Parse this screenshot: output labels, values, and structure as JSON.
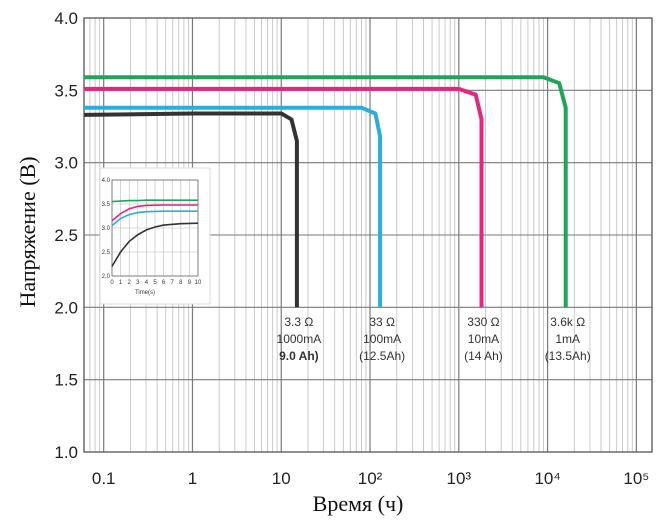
{
  "chart_data": {
    "type": "line",
    "title": "",
    "xlabel": "Время (ч)",
    "ylabel": "Напряжение (В)",
    "x_scale": "log",
    "xlim": [
      0.06,
      150000
    ],
    "ylim": [
      1.0,
      4.0
    ],
    "grid": true,
    "x_ticks": [
      {
        "value": 0.1,
        "label": "0.1"
      },
      {
        "value": 1,
        "label": "1"
      },
      {
        "value": 10,
        "label": "10"
      },
      {
        "value": 100,
        "label": "10²"
      },
      {
        "value": 1000,
        "label": "10³"
      },
      {
        "value": 10000,
        "label": "10⁴"
      },
      {
        "value": 100000,
        "label": "10⁵"
      }
    ],
    "y_ticks": [
      {
        "value": 4.0,
        "label": "4.0"
      },
      {
        "value": 3.5,
        "label": "3.5"
      },
      {
        "value": 3.0,
        "label": "3.0"
      },
      {
        "value": 2.5,
        "label": "2.5"
      },
      {
        "value": 2.0,
        "label": "2.0"
      },
      {
        "value": 1.5,
        "label": "1.5"
      },
      {
        "value": 1.0,
        "label": "1.0"
      }
    ],
    "series": [
      {
        "color": "#333333",
        "plateau": 3.33,
        "end": 15,
        "x": [
          0.06,
          1,
          10,
          13,
          15,
          15
        ],
        "y": [
          3.33,
          3.34,
          3.34,
          3.3,
          3.15,
          2.0
        ],
        "labels": [
          "3.3 Ω",
          "1000mA",
          "9.0 Ah)"
        ]
      },
      {
        "color": "#2aaee0",
        "plateau": 3.38,
        "end": 130,
        "x": [
          0.06,
          1,
          80,
          115,
          130,
          130
        ],
        "y": [
          3.38,
          3.38,
          3.38,
          3.34,
          3.18,
          2.0
        ],
        "labels": [
          "33 Ω",
          "100mA",
          "(12.5Ah)"
        ]
      },
      {
        "color": "#e6267e",
        "plateau": 3.51,
        "end": 1800,
        "x": [
          0.06,
          1,
          1000,
          1550,
          1800,
          1800
        ],
        "y": [
          3.51,
          3.51,
          3.51,
          3.47,
          3.3,
          2.0
        ],
        "labels": [
          "330 Ω",
          "10mA",
          "(14 Ah)"
        ]
      },
      {
        "color": "#1ea55a",
        "plateau": 3.59,
        "end": 16000,
        "x": [
          0.06,
          1,
          9000,
          13500,
          16000,
          16000
        ],
        "y": [
          3.59,
          3.59,
          3.59,
          3.55,
          3.38,
          2.0
        ],
        "labels": [
          "3.6k Ω",
          "1mA",
          "(13.5Ah)"
        ]
      }
    ],
    "inset": {
      "xlim": [
        0,
        10
      ],
      "ylim": [
        2.0,
        4.0
      ],
      "x_tick_labels": [
        "0",
        "1",
        "2",
        "3",
        "4",
        "5",
        "6",
        "7",
        "8",
        "9",
        "10"
      ],
      "y_tick_labels": [
        "4.0",
        "3.5",
        "3.0",
        "2.5",
        "2.0"
      ],
      "xlabel": "Time(s)",
      "series": [
        {
          "color": "#1ea55a",
          "x": [
            0,
            1,
            2,
            3,
            4,
            6,
            8,
            10
          ],
          "y": [
            3.55,
            3.56,
            3.57,
            3.57,
            3.58,
            3.58,
            3.58,
            3.58
          ]
        },
        {
          "color": "#e6267e",
          "x": [
            0,
            1,
            2,
            3,
            4,
            6,
            8,
            10
          ],
          "y": [
            3.15,
            3.3,
            3.4,
            3.45,
            3.47,
            3.48,
            3.48,
            3.48
          ]
        },
        {
          "color": "#2aaee0",
          "x": [
            0,
            1,
            2,
            3,
            4,
            6,
            8,
            10
          ],
          "y": [
            3.05,
            3.2,
            3.28,
            3.32,
            3.34,
            3.35,
            3.35,
            3.35
          ]
        },
        {
          "color": "#333333",
          "x": [
            0,
            1,
            2,
            3,
            4,
            5,
            6,
            8,
            10
          ],
          "y": [
            2.2,
            2.5,
            2.72,
            2.86,
            2.96,
            3.02,
            3.06,
            3.09,
            3.1
          ]
        }
      ]
    }
  }
}
